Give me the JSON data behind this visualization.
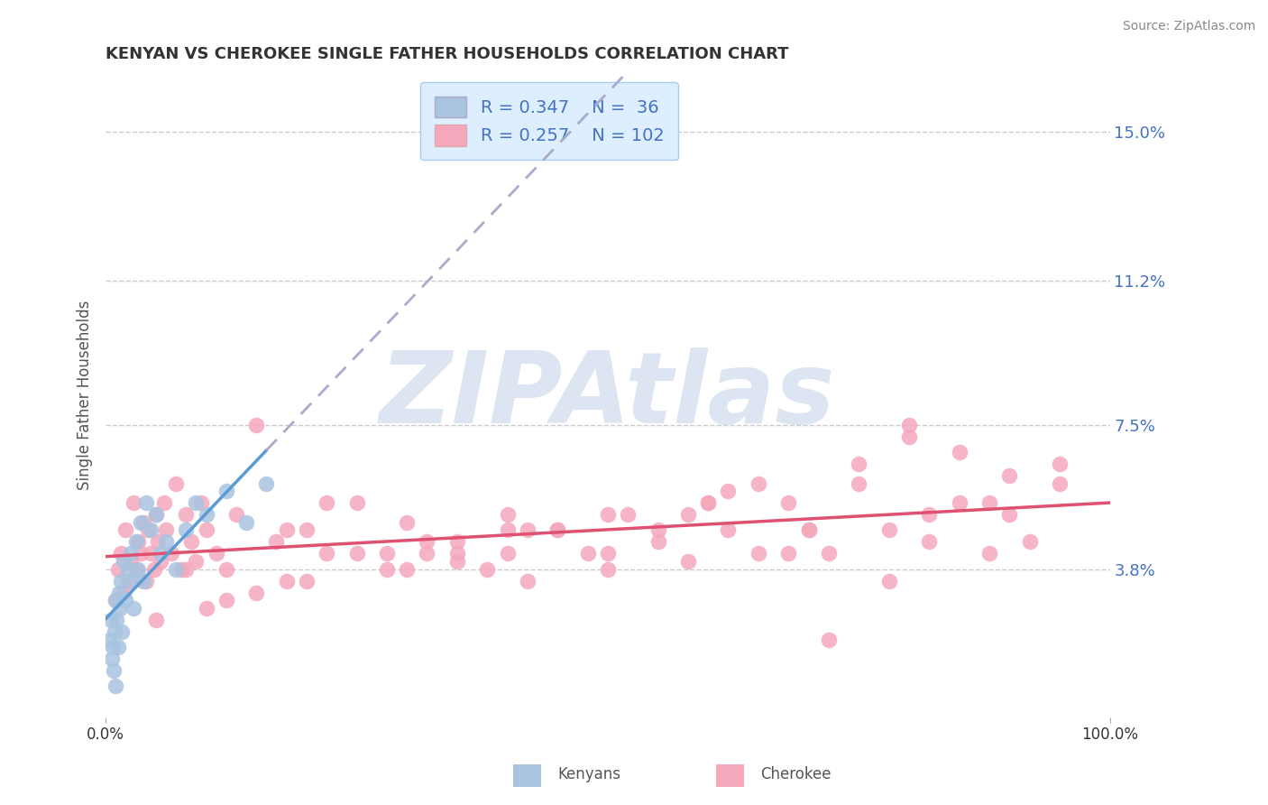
{
  "title": "KENYAN VS CHEROKEE SINGLE FATHER HOUSEHOLDS CORRELATION CHART",
  "source": "Source: ZipAtlas.com",
  "ylabel": "Single Father Households",
  "ytick_labels": [
    "3.8%",
    "7.5%",
    "11.2%",
    "15.0%"
  ],
  "ytick_values": [
    0.038,
    0.075,
    0.112,
    0.15
  ],
  "xlim": [
    0.0,
    1.0
  ],
  "ylim": [
    0.0,
    0.165
  ],
  "kenyan_color": "#a8c4e0",
  "cherokee_color": "#f5a8bc",
  "kenyan_R": 0.347,
  "kenyan_N": 36,
  "cherokee_R": 0.257,
  "cherokee_N": 102,
  "kenyan_line_color": "#5b9bd5",
  "kenyan_dashed_color": "#aaaacc",
  "cherokee_trend_color": "#e05070",
  "legend_bg_color": "#ddeeff",
  "legend_text_color": "#4472c4",
  "grid_color": "#cccccc",
  "background_color": "#ffffff",
  "watermark_text": "ZIPAtlas",
  "watermark_color": "#c5d5e8",
  "kenyan_scatter_x": [
    0.003,
    0.005,
    0.006,
    0.007,
    0.008,
    0.009,
    0.01,
    0.01,
    0.011,
    0.012,
    0.013,
    0.014,
    0.015,
    0.016,
    0.018,
    0.02,
    0.022,
    0.025,
    0.025,
    0.028,
    0.03,
    0.032,
    0.035,
    0.038,
    0.04,
    0.045,
    0.05,
    0.055,
    0.06,
    0.07,
    0.08,
    0.09,
    0.1,
    0.12,
    0.14,
    0.16
  ],
  "kenyan_scatter_y": [
    0.02,
    0.025,
    0.015,
    0.018,
    0.012,
    0.022,
    0.03,
    0.008,
    0.025,
    0.018,
    0.032,
    0.028,
    0.035,
    0.022,
    0.04,
    0.03,
    0.038,
    0.035,
    0.042,
    0.028,
    0.045,
    0.038,
    0.05,
    0.035,
    0.055,
    0.048,
    0.052,
    0.042,
    0.045,
    0.038,
    0.048,
    0.055,
    0.052,
    0.058,
    0.05,
    0.06
  ],
  "cherokee_scatter_x": [
    0.01,
    0.012,
    0.015,
    0.018,
    0.02,
    0.022,
    0.025,
    0.028,
    0.03,
    0.032,
    0.035,
    0.038,
    0.04,
    0.042,
    0.045,
    0.048,
    0.05,
    0.052,
    0.055,
    0.058,
    0.06,
    0.065,
    0.07,
    0.075,
    0.08,
    0.085,
    0.09,
    0.095,
    0.1,
    0.11,
    0.12,
    0.13,
    0.15,
    0.17,
    0.18,
    0.2,
    0.22,
    0.25,
    0.28,
    0.3,
    0.32,
    0.35,
    0.38,
    0.4,
    0.42,
    0.45,
    0.48,
    0.5,
    0.52,
    0.55,
    0.58,
    0.6,
    0.62,
    0.65,
    0.68,
    0.7,
    0.72,
    0.75,
    0.78,
    0.8,
    0.82,
    0.85,
    0.88,
    0.9,
    0.92,
    0.95,
    0.1,
    0.15,
    0.2,
    0.25,
    0.3,
    0.35,
    0.4,
    0.45,
    0.5,
    0.55,
    0.6,
    0.65,
    0.7,
    0.75,
    0.8,
    0.85,
    0.9,
    0.4,
    0.5,
    0.22,
    0.18,
    0.12,
    0.08,
    0.28,
    0.35,
    0.42,
    0.58,
    0.68,
    0.78,
    0.88,
    0.32,
    0.62,
    0.72,
    0.82,
    0.95,
    0.05
  ],
  "cherokee_scatter_y": [
    0.03,
    0.038,
    0.042,
    0.032,
    0.048,
    0.035,
    0.04,
    0.055,
    0.038,
    0.045,
    0.042,
    0.05,
    0.035,
    0.048,
    0.042,
    0.038,
    0.052,
    0.045,
    0.04,
    0.055,
    0.048,
    0.042,
    0.06,
    0.038,
    0.052,
    0.045,
    0.04,
    0.055,
    0.048,
    0.042,
    0.038,
    0.052,
    0.075,
    0.045,
    0.035,
    0.048,
    0.042,
    0.055,
    0.038,
    0.05,
    0.045,
    0.042,
    0.038,
    0.052,
    0.035,
    0.048,
    0.042,
    0.038,
    0.052,
    0.045,
    0.04,
    0.055,
    0.048,
    0.042,
    0.055,
    0.048,
    0.042,
    0.06,
    0.048,
    0.072,
    0.045,
    0.055,
    0.042,
    0.052,
    0.045,
    0.06,
    0.028,
    0.032,
    0.035,
    0.042,
    0.038,
    0.045,
    0.042,
    0.048,
    0.052,
    0.048,
    0.055,
    0.06,
    0.048,
    0.065,
    0.075,
    0.068,
    0.062,
    0.048,
    0.042,
    0.055,
    0.048,
    0.03,
    0.038,
    0.042,
    0.04,
    0.048,
    0.052,
    0.042,
    0.035,
    0.055,
    0.042,
    0.058,
    0.02,
    0.052,
    0.065,
    0.025
  ]
}
